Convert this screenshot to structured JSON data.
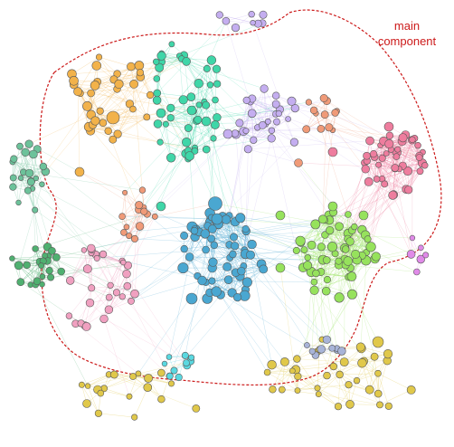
{
  "annotation": {
    "line1": "main",
    "line2": "component"
  },
  "boundary_color": "#cc1a1a",
  "communities": [
    {
      "name": "orange",
      "color": "#f2b24a"
    },
    {
      "name": "teal",
      "color": "#3fd6a8"
    },
    {
      "name": "lavender",
      "color": "#c4aef0"
    },
    {
      "name": "coral",
      "color": "#f09a78"
    },
    {
      "name": "pink",
      "color": "#ee7d9e"
    },
    {
      "name": "blue",
      "color": "#4aa7d1"
    },
    {
      "name": "lime",
      "color": "#96e25c"
    },
    {
      "name": "sage",
      "color": "#6cc29a"
    },
    {
      "name": "green",
      "color": "#4fb070"
    },
    {
      "name": "rose",
      "color": "#f0a0c0"
    },
    {
      "name": "yellow",
      "color": "#e0c84a"
    },
    {
      "name": "cyan",
      "color": "#5ad8e0"
    },
    {
      "name": "violet",
      "color": "#e08ae8"
    },
    {
      "name": "grey-blue",
      "color": "#a8b4d8"
    }
  ]
}
